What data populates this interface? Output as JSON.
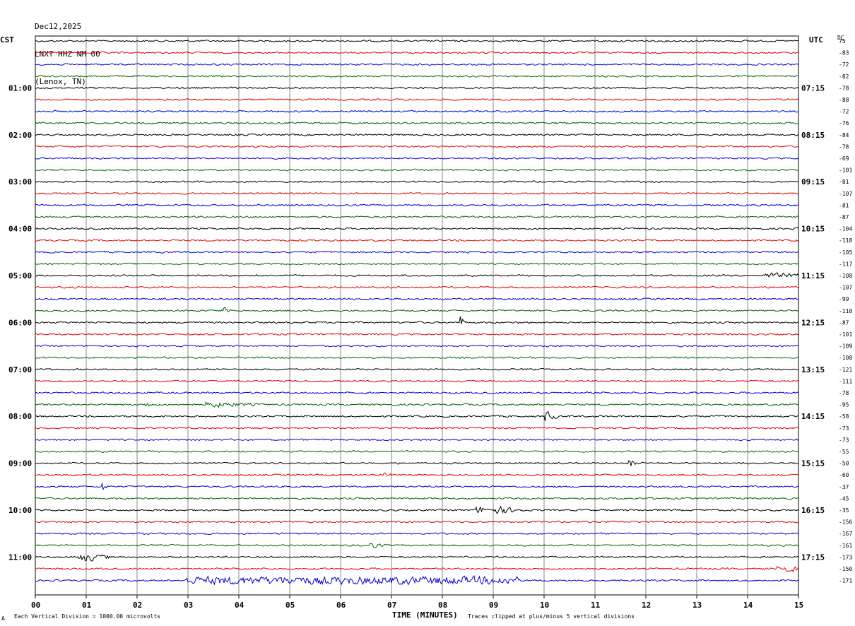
{
  "header": {
    "date": "Dec12,2025",
    "station": "LNXT HHZ NM 00",
    "location": "(Lenox, TN)"
  },
  "left_axis_title": "CST",
  "right_axis_title": "UTC",
  "dc_header": "DC",
  "footer": {
    "mark": "A",
    "scale_note": "Each Vertical Division = 1000.00 microvolts",
    "clip_note": "Traces clipped at plus/minus 5 vertical divisions"
  },
  "colors": {
    "trace_cycle": [
      "#000000",
      "#e00000",
      "#0000cc",
      "#006400"
    ],
    "grid": "#888888"
  },
  "chart_data": {
    "type": "line",
    "title": "",
    "xlabel": "TIME (MINUTES)",
    "ylabel": "",
    "xlim": [
      0,
      15
    ],
    "x_ticks": [
      "00",
      "01",
      "02",
      "03",
      "04",
      "05",
      "06",
      "07",
      "08",
      "09",
      "10",
      "11",
      "12",
      "13",
      "14",
      "15"
    ],
    "grid": true,
    "traces_per_hour": 4,
    "left_hour_labels": [
      "01:00",
      "02:00",
      "03:00",
      "04:00",
      "05:00",
      "06:00",
      "07:00",
      "08:00",
      "09:00",
      "10:00",
      "11:00"
    ],
    "right_hour_labels": [
      "07:15",
      "08:15",
      "09:15",
      "10:15",
      "11:15",
      "12:15",
      "13:15",
      "14:15",
      "15:15",
      "16:15",
      "17:15"
    ],
    "dc_offsets": [
      75,
      -83,
      -72,
      -82,
      -78,
      -88,
      -72,
      -76,
      -84,
      -78,
      -69,
      -101,
      -81,
      -107,
      -81,
      -87,
      -104,
      -118,
      -105,
      -117,
      -108,
      -107,
      -99,
      -110,
      -87,
      -101,
      -109,
      -108,
      -121,
      -111,
      -78,
      -95,
      -58,
      -73,
      -73,
      -55,
      -50,
      -60,
      -37,
      -45,
      -35,
      -156,
      -167,
      -161,
      -173,
      -150,
      -171
    ],
    "events": [
      {
        "trace": 23,
        "minute": 3.7,
        "amplitude": 2.0,
        "duration": 0.15
      },
      {
        "trace": 24,
        "minute": 8.4,
        "amplitude": 2.5,
        "duration": 0.05
      },
      {
        "trace": 31,
        "minute": 2.2,
        "amplitude": 1.2,
        "duration": 0.15
      },
      {
        "trace": 31,
        "minute": 3.4,
        "amplitude": 1.6,
        "duration": 1.0
      },
      {
        "trace": 32,
        "minute": 10.05,
        "amplitude": 3.5,
        "duration": 0.2
      },
      {
        "trace": 36,
        "minute": 11.7,
        "amplitude": 2.5,
        "duration": 0.1
      },
      {
        "trace": 37,
        "minute": 6.9,
        "amplitude": 1.0,
        "duration": 0.1
      },
      {
        "trace": 38,
        "minute": 1.35,
        "amplitude": 2.5,
        "duration": 0.1
      },
      {
        "trace": 40,
        "minute": 8.7,
        "amplitude": 2.0,
        "duration": 0.6
      },
      {
        "trace": 40,
        "minute": 9.1,
        "amplitude": 2.2,
        "duration": 0.5
      },
      {
        "trace": 43,
        "minute": 6.6,
        "amplitude": 1.5,
        "duration": 0.3
      },
      {
        "trace": 44,
        "minute": 0.9,
        "amplitude": 3.0,
        "duration": 0.6
      },
      {
        "trace": 45,
        "minute": 14.6,
        "amplitude": 2.0,
        "duration": 0.8
      },
      {
        "trace": 46,
        "minute": 3.0,
        "amplitude": 2.2,
        "duration": 6.5
      },
      {
        "trace": 20,
        "minute": 14.4,
        "amplitude": 1.6,
        "duration": 0.9
      }
    ]
  }
}
